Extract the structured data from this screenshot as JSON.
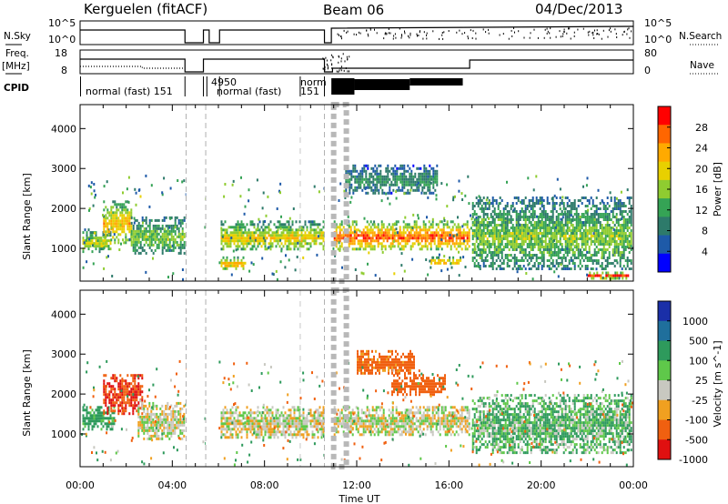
{
  "header": {
    "title": "Kerguelen (fitACF)",
    "beam": "Beam 06",
    "date": "04/Dec/2013"
  },
  "strip_labels": {
    "nsky": "N.Sky",
    "nsearch": "N.Search",
    "freq_line1": "Freq.",
    "freq_line2": "[MHz]",
    "nave": "Nave",
    "cpid": "CPID",
    "nsky_top": "10^5",
    "nsky_bot": "10^0",
    "freq_top": "18",
    "freq_bot": "8",
    "nave_top": "80",
    "nave_bot": "0"
  },
  "cpid_labels": [
    {
      "text": "normal (fast) 151",
      "hour": 0.1
    },
    {
      "text": "4950",
      "hour": 5.4
    },
    {
      "text": "normal (fast)",
      "hour": 5.95
    },
    {
      "text": "151",
      "hour": 9.6
    },
    {
      "text": "norm",
      "hour": 9.9
    }
  ],
  "panels": {
    "power": {
      "ylabel": "Slant Range [km]",
      "cb_label": "Power [dB]",
      "cb_ticks": [
        "28",
        "24",
        "20",
        "16",
        "12",
        "8",
        "4"
      ],
      "cb_colors": [
        "#ff0000",
        "#ff6600",
        "#ffaa00",
        "#e8d000",
        "#8fcc30",
        "#35a355",
        "#2d7a6a",
        "#1e5aa8",
        "#0000ff"
      ]
    },
    "velocity": {
      "ylabel": "Slant Range [km]",
      "cb_label": "Velocity [m s^-1]",
      "cb_ticks": [
        "1000",
        "500",
        "100",
        "25",
        "-25",
        "-100",
        "-500",
        "-1000"
      ],
      "cb_colors": [
        "#1a2fa8",
        "#1f6f9c",
        "#2e9a5c",
        "#5fc84a",
        "#c8c8c0",
        "#f0a020",
        "#f06010",
        "#e01010"
      ]
    }
  },
  "xaxis": {
    "label": "Time UT",
    "ticks": [
      "00:00",
      "04:00",
      "08:00",
      "12:00",
      "16:00",
      "20:00",
      "00:00"
    ]
  },
  "chart_data": [
    {
      "type": "heatmap",
      "title": "Power",
      "xlabel": "Time UT",
      "ylabel": "Slant Range [km]",
      "xlim_hours": [
        0,
        24
      ],
      "ylim": [
        180,
        4600
      ],
      "yticks": [
        1000,
        2000,
        3000,
        4000
      ],
      "colorbar": {
        "label": "Power [dB]",
        "range": [
          0,
          30
        ],
        "ticks": [
          4,
          8,
          12,
          16,
          20,
          24,
          28
        ]
      },
      "regions": [
        {
          "t0": 0.1,
          "t1": 1.3,
          "r0": 900,
          "r1": 1500,
          "power": 16
        },
        {
          "t0": 1.0,
          "t1": 2.2,
          "r0": 1150,
          "r1": 2200,
          "power": 20
        },
        {
          "t0": 2.2,
          "t1": 4.5,
          "r0": 900,
          "r1": 1800,
          "power": 14
        },
        {
          "t0": 6.1,
          "t1": 10.6,
          "r0": 950,
          "r1": 1700,
          "power": 18
        },
        {
          "t0": 6.1,
          "t1": 7.2,
          "r0": 500,
          "r1": 800,
          "power": 20
        },
        {
          "t0": 11.0,
          "t1": 16.9,
          "r0": 1000,
          "r1": 1700,
          "power": 24
        },
        {
          "t0": 11.5,
          "t1": 15.5,
          "r0": 2400,
          "r1": 3100,
          "power": 10
        },
        {
          "t0": 15.2,
          "t1": 16.5,
          "r0": 600,
          "r1": 800,
          "power": 22
        },
        {
          "t0": 17.0,
          "t1": 23.9,
          "r0": 500,
          "r1": 2300,
          "power": 14
        },
        {
          "t0": 22.0,
          "t1": 23.8,
          "r0": 280,
          "r1": 420,
          "power": 26
        }
      ],
      "data_gaps_hours": [
        [
          4.6,
          5.3
        ],
        [
          5.45,
          5.95
        ],
        [
          10.6,
          10.95
        ]
      ]
    },
    {
      "type": "heatmap",
      "title": "Velocity",
      "xlabel": "Time UT",
      "ylabel": "Slant Range [km]",
      "xlim_hours": [
        0,
        24
      ],
      "ylim": [
        180,
        4600
      ],
      "yticks": [
        1000,
        2000,
        3000,
        4000
      ],
      "colorbar": {
        "label": "Velocity [m s^-1]",
        "ticks": [
          -1000,
          -500,
          -100,
          -25,
          25,
          100,
          500,
          1000
        ]
      },
      "regions": [
        {
          "t0": 0.1,
          "t1": 1.5,
          "r0": 1100,
          "r1": 1700,
          "velocity": 100
        },
        {
          "t0": 1.0,
          "t1": 2.7,
          "r0": 1500,
          "r1": 2500,
          "velocity": -300
        },
        {
          "t0": 2.5,
          "t1": 4.5,
          "r0": 900,
          "r1": 1800,
          "velocity": 0
        },
        {
          "t0": 6.1,
          "t1": 10.6,
          "r0": 900,
          "r1": 1700,
          "velocity": 0
        },
        {
          "t0": 11.0,
          "t1": 16.9,
          "r0": 1000,
          "r1": 1700,
          "velocity": 0
        },
        {
          "t0": 13.5,
          "t1": 15.8,
          "r0": 2000,
          "r1": 2500,
          "velocity": -150
        },
        {
          "t0": 12.0,
          "t1": 14.5,
          "r0": 2500,
          "r1": 3100,
          "velocity": -100
        },
        {
          "t0": 17.0,
          "t1": 23.9,
          "r0": 500,
          "r1": 2000,
          "velocity": 60
        }
      ],
      "data_gaps_hours": [
        [
          4.6,
          5.3
        ],
        [
          5.45,
          5.95
        ],
        [
          10.6,
          10.95
        ]
      ]
    }
  ]
}
